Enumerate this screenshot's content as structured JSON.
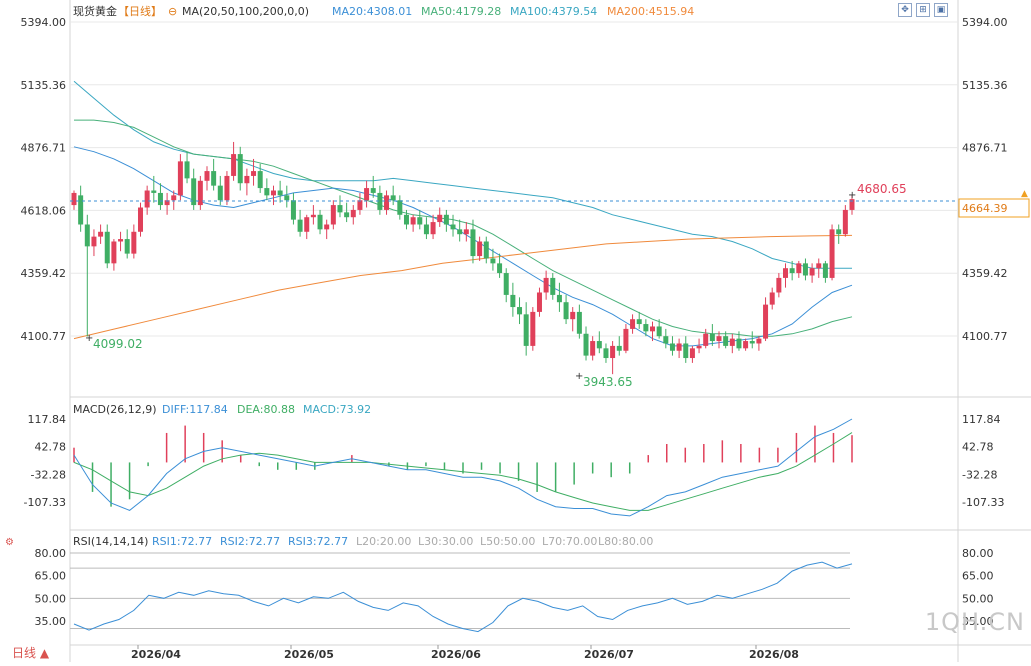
{
  "header": {
    "instrument": "现货黄金",
    "period_tag": "【日线】",
    "ma_label": "MA(20,50,100,200,0,0)",
    "ma_values": [
      {
        "text": "MA20:4308.01",
        "color": "#3b8fd6"
      },
      {
        "text": "MA50:4179.28",
        "color": "#48b07a"
      },
      {
        "text": "MA100:4379.54",
        "color": "#3aa7c2"
      },
      {
        "text": "MA200:4515.94",
        "color": "#f08a3c"
      }
    ]
  },
  "toolbar": {
    "icons": [
      "move-icon",
      "zoom-icon",
      "maximize-icon",
      "close-icon"
    ]
  },
  "colors": {
    "up": "#e0405a",
    "down": "#3fae64",
    "grid": "#e8e8e8",
    "axis": "#333333"
  },
  "price_axis": {
    "ticks": [
      "5394.00",
      "5135.36",
      "4876.71",
      "4618.06",
      "4359.42",
      "4100.77"
    ],
    "current_price": "4664.39",
    "high_label": "4680.65",
    "low_label_left": "4099.02",
    "low_label_mid": "3943.65"
  },
  "macd": {
    "label": "MACD(26,12,9)",
    "diff": "DIFF:117.84",
    "dea": "DEA:80.88",
    "macd": "MACD:73.92",
    "ticks": [
      "117.84",
      "42.78",
      "-32.28",
      "-107.33"
    ]
  },
  "rsi": {
    "label": "RSI(14,14,14)",
    "rsi1": "RSI1:72.77",
    "rsi2": "RSI2:72.77",
    "rsi3": "RSI3:72.77",
    "levels": [
      "L20:20.00",
      "L30:30.00",
      "L50:50.00",
      "L70:70.00",
      "L80:80.00"
    ],
    "ticks": [
      "80.00",
      "65.00",
      "50.00",
      "35.00"
    ]
  },
  "date_axis": [
    "2026/04",
    "2026/05",
    "2026/06",
    "2026/07",
    "2026/08"
  ],
  "sidebar": {
    "period_button": "日线 ▲"
  },
  "watermark": "1QH.CN",
  "chart_data": {
    "type": "candlestick",
    "ylim": [
      3943.65,
      5394.0
    ],
    "candles_ohlc": [
      [
        4640,
        4700,
        4620,
        4690
      ],
      [
        4680,
        4720,
        4530,
        4560
      ],
      [
        4560,
        4600,
        4099,
        4470
      ],
      [
        4470,
        4540,
        4430,
        4510
      ],
      [
        4510,
        4560,
        4480,
        4530
      ],
      [
        4530,
        4560,
        4380,
        4400
      ],
      [
        4400,
        4500,
        4370,
        4490
      ],
      [
        4490,
        4530,
        4450,
        4500
      ],
      [
        4500,
        4540,
        4420,
        4440
      ],
      [
        4440,
        4560,
        4420,
        4530
      ],
      [
        4530,
        4650,
        4510,
        4630
      ],
      [
        4630,
        4720,
        4600,
        4700
      ],
      [
        4700,
        4760,
        4650,
        4690
      ],
      [
        4690,
        4730,
        4620,
        4640
      ],
      [
        4640,
        4690,
        4600,
        4660
      ],
      [
        4660,
        4700,
        4620,
        4680
      ],
      [
        4680,
        4850,
        4660,
        4820
      ],
      [
        4820,
        4860,
        4730,
        4750
      ],
      [
        4750,
        4790,
        4620,
        4640
      ],
      [
        4640,
        4760,
        4620,
        4740
      ],
      [
        4740,
        4800,
        4700,
        4780
      ],
      [
        4780,
        4830,
        4700,
        4720
      ],
      [
        4720,
        4760,
        4640,
        4660
      ],
      [
        4660,
        4780,
        4640,
        4760
      ],
      [
        4760,
        4900,
        4740,
        4850
      ],
      [
        4850,
        4880,
        4700,
        4730
      ],
      [
        4730,
        4790,
        4680,
        4760
      ],
      [
        4760,
        4830,
        4720,
        4780
      ],
      [
        4780,
        4810,
        4690,
        4710
      ],
      [
        4710,
        4750,
        4660,
        4680
      ],
      [
        4680,
        4720,
        4640,
        4700
      ],
      [
        4700,
        4740,
        4650,
        4680
      ],
      [
        4680,
        4720,
        4630,
        4660
      ],
      [
        4660,
        4690,
        4560,
        4580
      ],
      [
        4580,
        4620,
        4510,
        4530
      ],
      [
        4530,
        4600,
        4500,
        4590
      ],
      [
        4590,
        4640,
        4560,
        4600
      ],
      [
        4600,
        4620,
        4520,
        4540
      ],
      [
        4540,
        4580,
        4500,
        4560
      ],
      [
        4560,
        4660,
        4540,
        4640
      ],
      [
        4640,
        4680,
        4590,
        4610
      ],
      [
        4610,
        4650,
        4570,
        4590
      ],
      [
        4590,
        4640,
        4560,
        4620
      ],
      [
        4620,
        4690,
        4600,
        4660
      ],
      [
        4660,
        4740,
        4630,
        4710
      ],
      [
        4710,
        4760,
        4670,
        4690
      ],
      [
        4690,
        4720,
        4600,
        4620
      ],
      [
        4620,
        4700,
        4600,
        4680
      ],
      [
        4680,
        4720,
        4640,
        4660
      ],
      [
        4660,
        4680,
        4580,
        4600
      ],
      [
        4600,
        4620,
        4540,
        4560
      ],
      [
        4560,
        4600,
        4530,
        4590
      ],
      [
        4590,
        4620,
        4540,
        4560
      ],
      [
        4560,
        4590,
        4500,
        4520
      ],
      [
        4520,
        4600,
        4500,
        4570
      ],
      [
        4570,
        4630,
        4550,
        4600
      ],
      [
        4600,
        4620,
        4530,
        4560
      ],
      [
        4560,
        4600,
        4510,
        4540
      ],
      [
        4540,
        4580,
        4490,
        4520
      ],
      [
        4520,
        4570,
        4490,
        4540
      ],
      [
        4540,
        4580,
        4400,
        4430
      ],
      [
        4430,
        4510,
        4410,
        4490
      ],
      [
        4490,
        4510,
        4400,
        4420
      ],
      [
        4420,
        4460,
        4370,
        4400
      ],
      [
        4400,
        4440,
        4340,
        4360
      ],
      [
        4360,
        4380,
        4240,
        4270
      ],
      [
        4270,
        4320,
        4180,
        4220
      ],
      [
        4220,
        4260,
        4150,
        4190
      ],
      [
        4190,
        4240,
        4020,
        4060
      ],
      [
        4060,
        4220,
        4040,
        4200
      ],
      [
        4200,
        4300,
        4180,
        4280
      ],
      [
        4280,
        4370,
        4250,
        4340
      ],
      [
        4340,
        4360,
        4250,
        4270
      ],
      [
        4270,
        4320,
        4200,
        4240
      ],
      [
        4240,
        4270,
        4150,
        4170
      ],
      [
        4170,
        4220,
        4120,
        4200
      ],
      [
        4200,
        4230,
        4090,
        4110
      ],
      [
        4110,
        4140,
        4000,
        4020
      ],
      [
        4020,
        4100,
        4000,
        4080
      ],
      [
        4080,
        4120,
        4030,
        4050
      ],
      [
        4050,
        4070,
        3990,
        4010
      ],
      [
        4010,
        4080,
        3943.65,
        4060
      ],
      [
        4060,
        4100,
        4020,
        4040
      ],
      [
        4040,
        4150,
        4030,
        4130
      ],
      [
        4130,
        4190,
        4110,
        4170
      ],
      [
        4170,
        4200,
        4130,
        4150
      ],
      [
        4150,
        4170,
        4100,
        4120
      ],
      [
        4120,
        4160,
        4080,
        4140
      ],
      [
        4140,
        4170,
        4090,
        4100
      ],
      [
        4100,
        4130,
        4050,
        4070
      ],
      [
        4070,
        4100,
        4020,
        4040
      ],
      [
        4040,
        4090,
        4010,
        4070
      ],
      [
        4070,
        4100,
        3990,
        4010
      ],
      [
        4010,
        4060,
        3990,
        4050
      ],
      [
        4050,
        4090,
        4030,
        4060
      ],
      [
        4060,
        4130,
        4050,
        4110
      ],
      [
        4110,
        4150,
        4060,
        4080
      ],
      [
        4080,
        4120,
        4050,
        4100
      ],
      [
        4100,
        4120,
        4050,
        4060
      ],
      [
        4060,
        4110,
        4030,
        4090
      ],
      [
        4090,
        4120,
        4040,
        4050
      ],
      [
        4050,
        4090,
        4040,
        4080
      ],
      [
        4080,
        4120,
        4050,
        4070
      ],
      [
        4070,
        4100,
        4040,
        4090
      ],
      [
        4090,
        4260,
        4080,
        4230
      ],
      [
        4230,
        4300,
        4210,
        4280
      ],
      [
        4280,
        4360,
        4260,
        4340
      ],
      [
        4340,
        4400,
        4300,
        4380
      ],
      [
        4380,
        4410,
        4330,
        4360
      ],
      [
        4360,
        4410,
        4340,
        4400
      ],
      [
        4400,
        4420,
        4330,
        4350
      ],
      [
        4350,
        4400,
        4320,
        4380
      ],
      [
        4380,
        4420,
        4340,
        4400
      ],
      [
        4400,
        4410,
        4320,
        4340
      ],
      [
        4340,
        4560,
        4330,
        4540
      ],
      [
        4540,
        4560,
        4480,
        4520
      ],
      [
        4520,
        4640,
        4510,
        4620
      ],
      [
        4620,
        4680.65,
        4600,
        4664.39
      ]
    ],
    "ma20": [
      4880,
      4860,
      4830,
      4790,
      4740,
      4690,
      4660,
      4640,
      4630,
      4650,
      4670,
      4690,
      4700,
      4710,
      4700,
      4680,
      4660,
      4630,
      4590,
      4550,
      4500,
      4450,
      4400,
      4350,
      4300,
      4260,
      4230,
      4190,
      4140,
      4090,
      4060,
      4060,
      4070,
      4080,
      4090,
      4110,
      4150,
      4220,
      4280,
      4310
    ],
    "ma50": [
      4990,
      4990,
      4980,
      4960,
      4920,
      4880,
      4850,
      4840,
      4830,
      4820,
      4800,
      4770,
      4740,
      4710,
      4680,
      4650,
      4620,
      4600,
      4590,
      4580,
      4560,
      4520,
      4470,
      4420,
      4370,
      4330,
      4290,
      4250,
      4210,
      4170,
      4140,
      4120,
      4110,
      4110,
      4100,
      4100,
      4110,
      4130,
      4160,
      4180
    ],
    "ma100": [
      5150,
      5080,
      5010,
      4950,
      4900,
      4870,
      4850,
      4840,
      4830,
      4800,
      4770,
      4750,
      4740,
      4740,
      4740,
      4740,
      4750,
      4740,
      4730,
      4720,
      4710,
      4700,
      4690,
      4680,
      4670,
      4650,
      4630,
      4600,
      4580,
      4560,
      4540,
      4520,
      4510,
      4490,
      4460,
      4420,
      4400,
      4380,
      4380,
      4380
    ],
    "ma200": [
      4090,
      4130,
      4170,
      4210,
      4250,
      4290,
      4320,
      4350,
      4370,
      4400,
      4420,
      4440,
      4460,
      4480,
      4490,
      4500,
      4505,
      4510,
      4513,
      4515
    ],
    "macd_diff": [
      20,
      -60,
      -110,
      -130,
      -90,
      -30,
      10,
      30,
      40,
      30,
      20,
      10,
      0,
      -10,
      0,
      10,
      0,
      -10,
      -20,
      -20,
      -30,
      -40,
      -40,
      -50,
      -70,
      -100,
      -120,
      -125,
      -125,
      -140,
      -145,
      -120,
      -90,
      -80,
      -60,
      -40,
      -30,
      -20,
      -10,
      30,
      70,
      90,
      117.84
    ],
    "macd_dea": [
      0,
      -20,
      -50,
      -80,
      -90,
      -70,
      -40,
      -10,
      10,
      20,
      25,
      20,
      10,
      0,
      0,
      0,
      0,
      -5,
      -10,
      -15,
      -20,
      -25,
      -30,
      -35,
      -45,
      -60,
      -80,
      -95,
      -110,
      -120,
      -130,
      -130,
      -115,
      -100,
      -85,
      -70,
      -55,
      -40,
      -30,
      -10,
      20,
      50,
      80.88
    ],
    "macd_hist": [
      40,
      -80,
      -120,
      -100,
      -10,
      80,
      100,
      80,
      60,
      20,
      -10,
      -20,
      -20,
      -20,
      0,
      20,
      0,
      -10,
      -20,
      -10,
      -20,
      -30,
      -20,
      -30,
      -50,
      -80,
      -80,
      -60,
      -30,
      -40,
      -30,
      20,
      50,
      40,
      50,
      60,
      50,
      40,
      40,
      80,
      100,
      80,
      73.92
    ],
    "rsi": [
      33,
      29,
      33,
      36,
      42,
      52,
      50,
      54,
      52,
      55,
      53,
      52,
      48,
      45,
      50,
      47,
      51,
      50,
      54,
      48,
      44,
      42,
      47,
      45,
      38,
      33,
      30,
      28,
      34,
      45,
      50,
      48,
      44,
      42,
      45,
      38,
      36,
      42,
      45,
      47,
      50,
      46,
      48,
      52,
      50,
      53,
      56,
      60,
      68,
      72,
      74,
      70,
      72.77
    ],
    "rsi_ylim": [
      25,
      80
    ],
    "macd_ylim": [
      -150,
      135
    ]
  }
}
